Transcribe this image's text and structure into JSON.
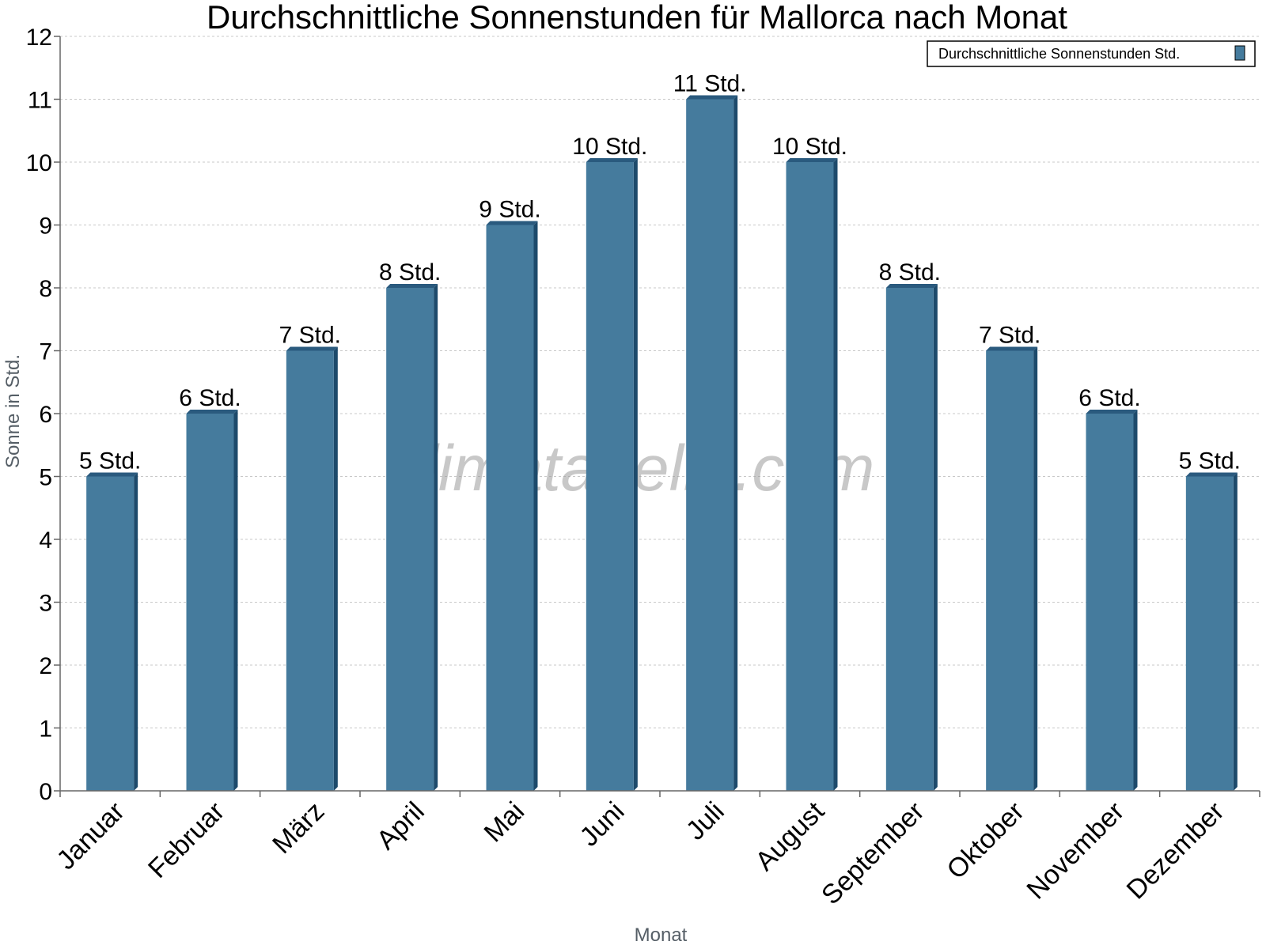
{
  "chart_data": {
    "type": "bar",
    "title": "Durchschnittliche Sonnenstunden für Mallorca nach Monat",
    "xlabel": "Monat",
    "ylabel": "Sonne in Std.",
    "ylim": [
      0,
      12
    ],
    "yticks": [
      "0",
      "1",
      "2",
      "3",
      "4",
      "5",
      "6",
      "7",
      "8",
      "9",
      "10",
      "11",
      "12"
    ],
    "grid": true,
    "legend_position": "top-right",
    "categories": [
      "Januar",
      "Februar",
      "März",
      "April",
      "Mai",
      "Juni",
      "Juli",
      "August",
      "September",
      "Oktober",
      "November",
      "Dezember"
    ],
    "series": [
      {
        "name": "Durchschnittliche Sonnenstunden Std.",
        "values": [
          5,
          6,
          7,
          8,
          9,
          10,
          11,
          10,
          8,
          7,
          6,
          5
        ],
        "labels": [
          "5 Std.",
          "6 Std.",
          "7 Std.",
          "8 Std.",
          "9 Std.",
          "10 Std.",
          "11 Std.",
          "10 Std.",
          "8 Std.",
          "7 Std.",
          "6 Std.",
          "5 Std."
        ]
      }
    ],
    "watermark": "klimatabelle.com"
  },
  "colors": {
    "bar_front": "#457b9d",
    "bar_side": "#1d4a6b",
    "bar_top": "#2a5a7e",
    "grid": "#c8c8c8",
    "axis": "#666666"
  }
}
